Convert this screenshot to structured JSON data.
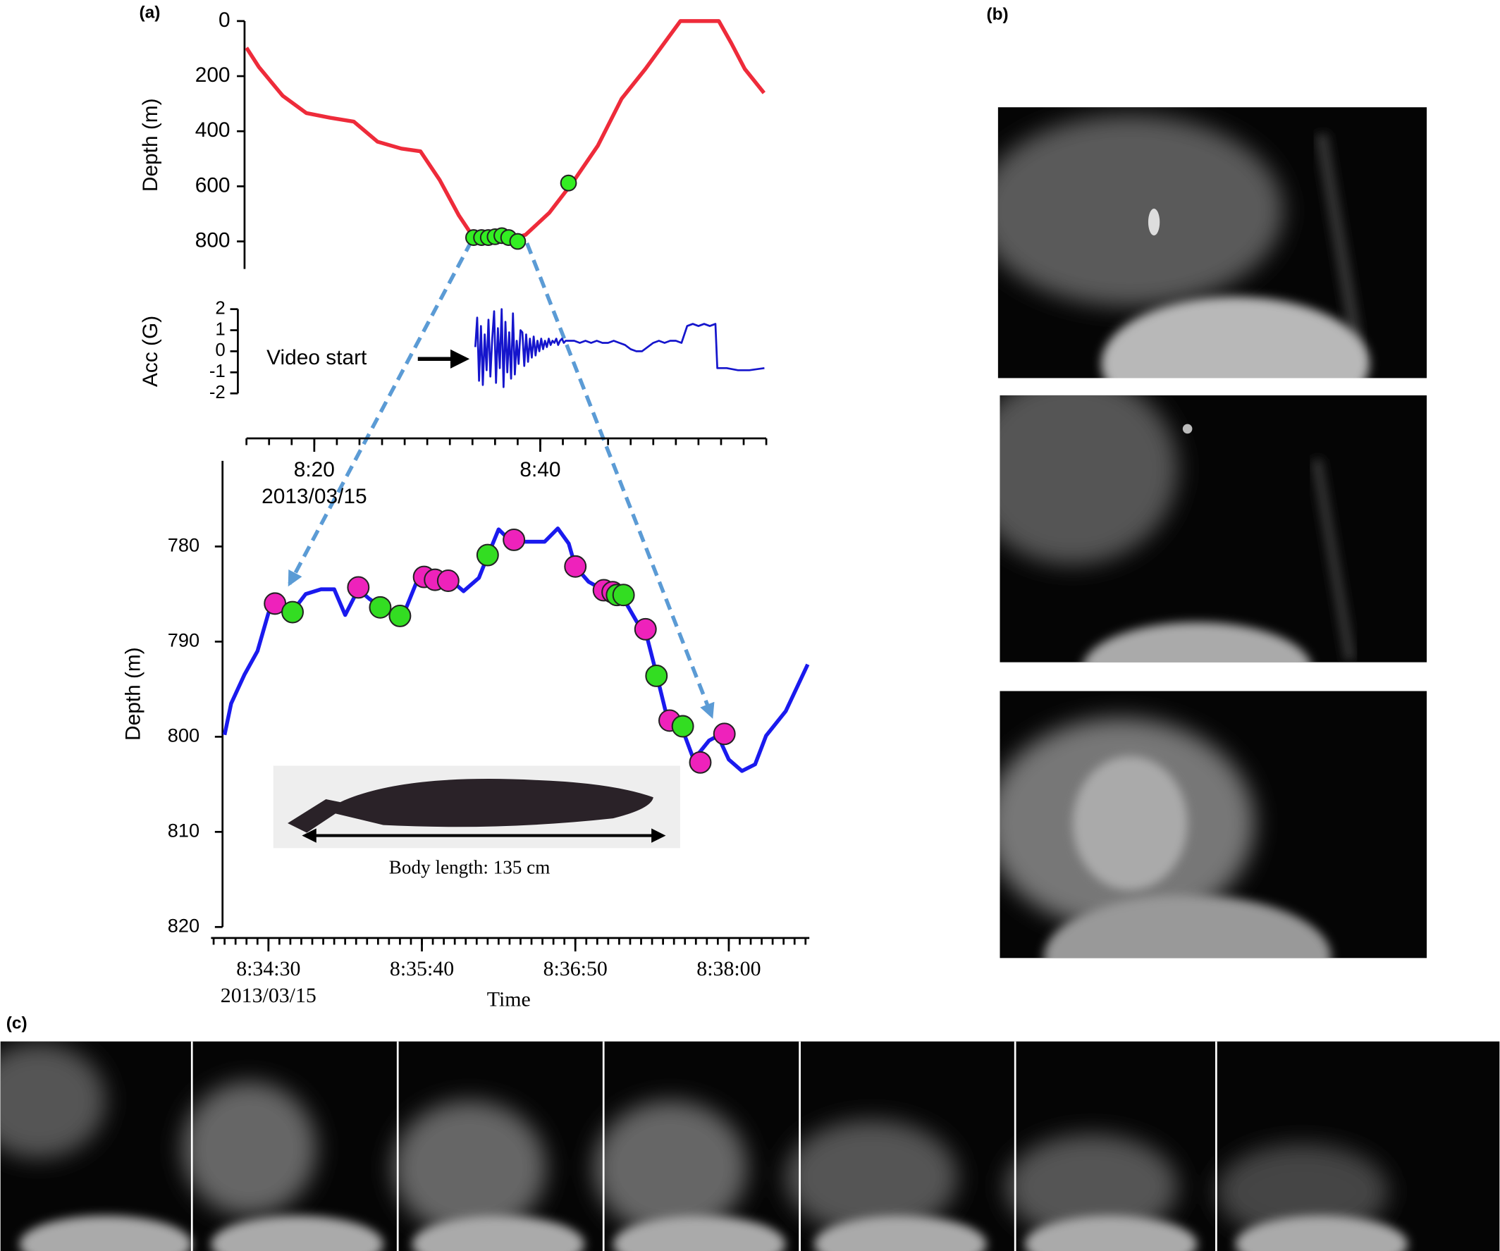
{
  "panels": [
    "(a)",
    "(b)",
    "(c)"
  ],
  "chart_data": [
    {
      "type": "line",
      "ylabel": "Depth (m)",
      "color": "#ee2b3a",
      "x": [
        "8:14:00",
        "8:15:06",
        "8:17:12",
        "8:19:18",
        "8:21:24",
        "8:23:30",
        "8:25:36",
        "8:27:42",
        "8:29:24",
        "8:31:06",
        "8:32:48",
        "8:34:06",
        "8:35:24",
        "8:37:00",
        "8:38:42",
        "8:40:48",
        "8:42:54",
        "8:45:06",
        "8:47:12",
        "8:49:18",
        "8:51:24",
        "8:52:24",
        "8:55:48",
        "8:56:54",
        "8:58:06",
        "8:59:48"
      ],
      "values": [
        97,
        167,
        271,
        334,
        351,
        365,
        438,
        463,
        473,
        577,
        706,
        786,
        800,
        797,
        776,
        696,
        584,
        452,
        282,
        174,
        56,
        0,
        0,
        80,
        174,
        261
      ],
      "markers": [
        {
          "color": "#33ee22",
          "x": [
            "8:34:06",
            "8:34:48",
            "8:35:24",
            "8:36:00",
            "8:36:36",
            "8:37:12",
            "8:38:00",
            "8:42:30"
          ],
          "values": [
            786,
            786,
            786,
            783,
            779,
            786,
            800,
            588
          ]
        }
      ],
      "xlim": [
        "8:14",
        "9:00"
      ],
      "ylim": [
        0,
        900
      ],
      "y_inverted": true,
      "yticks": [
        0,
        200,
        400,
        600,
        800
      ]
    },
    {
      "type": "line",
      "ylabel": "Acc (G)",
      "annotation": "Video start",
      "color": "#1515cc",
      "x": [
        "8:34:15",
        "8:34:25",
        "8:34:35",
        "8:34:45",
        "8:34:55",
        "8:35:05",
        "8:35:15",
        "8:35:25",
        "8:35:35",
        "8:35:45",
        "8:35:55",
        "8:36:05",
        "8:36:15",
        "8:36:25",
        "8:36:35",
        "8:36:45",
        "8:36:55",
        "8:37:05",
        "8:37:15",
        "8:37:25",
        "8:37:35",
        "8:37:45",
        "8:37:55",
        "8:38:05",
        "8:38:15",
        "8:38:25",
        "8:38:35",
        "8:38:45",
        "8:38:55",
        "8:39:05",
        "8:39:15",
        "8:39:25",
        "8:39:35",
        "8:39:45",
        "8:39:55",
        "8:40:05",
        "8:40:15",
        "8:40:25",
        "8:40:35",
        "8:40:45",
        "8:40:55",
        "8:41:05",
        "8:41:15",
        "8:41:25",
        "8:41:35",
        "8:41:45",
        "8:41:55",
        "8:42:05",
        "8:42:15",
        "8:42:25",
        "8:43:00",
        "8:43:30",
        "8:44:00",
        "8:44:30",
        "8:45:00",
        "8:45:30",
        "8:46:00",
        "8:46:30",
        "8:47:00",
        "8:47:30",
        "8:48:00",
        "8:48:30",
        "8:49:00",
        "8:49:30",
        "8:50:00",
        "8:50:30",
        "8:51:00",
        "8:51:30",
        "8:52:00",
        "8:52:30",
        "8:53:00",
        "8:53:30",
        "8:54:00",
        "8:54:30",
        "8:55:00",
        "8:55:30",
        "8:55:40",
        "8:56:30",
        "8:57:30",
        "8:58:30",
        "8:59:50"
      ],
      "values": [
        0.2,
        1.6,
        -1.4,
        1.2,
        -1.6,
        0.8,
        -0.9,
        1.5,
        -1.2,
        0.6,
        1.9,
        -1.5,
        1.1,
        -0.8,
        2.0,
        -1.7,
        1.4,
        -1.0,
        0.9,
        -1.3,
        1.8,
        -1.1,
        0.5,
        -0.6,
        1.0,
        0.9,
        -0.7,
        0.8,
        -0.5,
        0.6,
        -0.3,
        0.7,
        -0.2,
        0.5,
        0.0,
        0.6,
        0.1,
        0.5,
        0.2,
        0.6,
        0.3,
        0.5,
        0.4,
        0.6,
        0.3,
        0.5,
        0.6,
        0.4,
        0.5,
        0.5,
        0.5,
        0.4,
        0.5,
        0.4,
        0.5,
        0.4,
        0.4,
        0.5,
        0.4,
        0.3,
        0.1,
        0.0,
        0.0,
        0.2,
        0.4,
        0.5,
        0.4,
        0.5,
        0.5,
        0.4,
        1.2,
        1.3,
        1.2,
        1.3,
        1.2,
        1.3,
        -0.8,
        -0.8,
        -0.9,
        -0.9,
        -0.8
      ],
      "xlim": [
        "8:14",
        "9:00"
      ],
      "xticks": [
        "8:20",
        "8:40"
      ],
      "x_date": "2013/03/15",
      "xminor": [
        "8:14",
        "8:16",
        "8:18",
        "8:20",
        "8:22",
        "8:24",
        "8:26",
        "8:28",
        "8:30",
        "8:32",
        "8:34",
        "8:36",
        "8:38",
        "8:40",
        "8:42",
        "8:44",
        "8:46",
        "8:48",
        "8:50",
        "8:52",
        "8:54",
        "8:56",
        "8:58",
        "9:00"
      ],
      "ylim": [
        -2,
        2
      ],
      "yticks": [
        -2,
        -1,
        0,
        1,
        2
      ]
    },
    {
      "type": "line",
      "ylabel": "Depth (m)",
      "xlabel": "Time",
      "annotation": "Body length: 135 cm",
      "color": "#1a1aee",
      "x": [
        "8:34:10",
        "8:34:13",
        "8:34:19",
        "8:34:25",
        "8:34:30",
        "8:34:33",
        "8:34:41",
        "8:34:47",
        "8:34:54",
        "8:35:00",
        "8:35:05",
        "8:35:11",
        "8:35:16",
        "8:35:21",
        "8:35:27",
        "8:35:31",
        "8:35:38",
        "8:35:44",
        "8:35:53",
        "8:35:59",
        "8:36:06",
        "8:36:10",
        "8:36:15",
        "8:36:19",
        "8:36:26",
        "8:36:36",
        "8:36:42",
        "8:36:47",
        "8:36:50",
        "8:36:56",
        "8:37:03",
        "8:37:11",
        "8:37:18",
        "8:37:22",
        "8:37:27",
        "8:37:32",
        "8:37:38",
        "8:37:44",
        "8:37:51",
        "8:37:55",
        "8:38:00",
        "8:38:06",
        "8:38:12",
        "8:38:17",
        "8:38:26",
        "8:38:36"
      ],
      "values": [
        799.8,
        796.5,
        793.5,
        791.0,
        787.0,
        786.0,
        786.8,
        785.0,
        784.5,
        784.5,
        787.2,
        784.5,
        785.5,
        786.3,
        787.0,
        787.5,
        783.5,
        783.3,
        783.5,
        784.7,
        783.3,
        781.0,
        778.2,
        779.1,
        779.5,
        779.5,
        778.1,
        779.7,
        782.1,
        783.7,
        784.6,
        785.1,
        787.9,
        788.9,
        793.4,
        798.1,
        798.7,
        802.4,
        800.4,
        799.9,
        802.4,
        803.6,
        802.9,
        799.9,
        797.3,
        792.4
      ],
      "markers": [
        {
          "color": "#ee22bb",
          "x": [
            "8:34:33",
            "8:35:11",
            "8:35:41",
            "8:35:46",
            "8:35:52",
            "8:36:22",
            "8:36:50",
            "8:37:03",
            "8:37:07",
            "8:37:22",
            "8:37:33",
            "8:37:47",
            "8:37:58"
          ],
          "values": [
            786.0,
            784.3,
            783.2,
            783.5,
            783.6,
            779.3,
            782.1,
            784.6,
            784.8,
            788.7,
            798.3,
            802.7,
            799.7
          ]
        },
        {
          "color": "#33dd22",
          "x": [
            "8:34:41",
            "8:35:21",
            "8:35:30",
            "8:36:10",
            "8:37:09",
            "8:37:12",
            "8:37:27",
            "8:37:39"
          ],
          "values": [
            786.9,
            786.4,
            787.3,
            780.9,
            785.1,
            785.1,
            793.6,
            798.9
          ]
        }
      ],
      "xlim": [
        "8:34:05",
        "8:38:35"
      ],
      "xticks": [
        "8:34:30",
        "8:35:40",
        "8:36:50",
        "8:38:00"
      ],
      "x_date": "2013/03/15",
      "xminor": [
        "8:34:05",
        "8:34:10",
        "8:34:15",
        "8:34:20",
        "8:34:25",
        "8:34:30",
        "8:34:35",
        "8:34:40",
        "8:34:45",
        "8:34:50",
        "8:34:55",
        "8:35:00",
        "8:35:05",
        "8:35:10",
        "8:35:15",
        "8:35:20",
        "8:35:25",
        "8:35:30",
        "8:35:35",
        "8:35:40",
        "8:35:45",
        "8:35:50",
        "8:35:55",
        "8:36:00",
        "8:36:05",
        "8:36:10",
        "8:36:15",
        "8:36:20",
        "8:36:25",
        "8:36:30",
        "8:36:35",
        "8:36:40",
        "8:36:45",
        "8:36:50",
        "8:36:55",
        "8:37:00",
        "8:37:05",
        "8:37:10",
        "8:37:15",
        "8:37:20",
        "8:37:25",
        "8:37:30",
        "8:37:35",
        "8:37:40",
        "8:37:45",
        "8:37:50",
        "8:37:55",
        "8:38:00",
        "8:38:05",
        "8:38:10",
        "8:38:15",
        "8:38:20",
        "8:38:25",
        "8:38:30",
        "8:38:35"
      ],
      "ylim": [
        771,
        820
      ],
      "y_inverted": true,
      "yticks": [
        780,
        790,
        800,
        810,
        820
      ]
    }
  ]
}
